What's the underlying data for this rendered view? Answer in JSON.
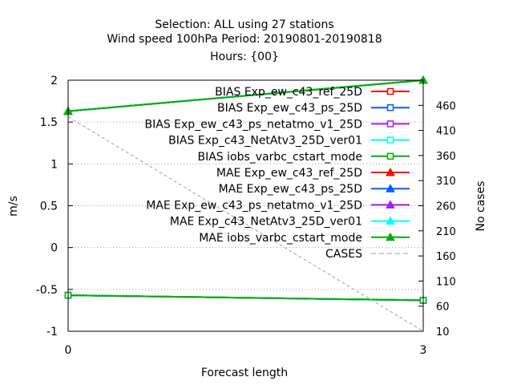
{
  "chart_data": {
    "type": "line",
    "title_lines": [
      "Selection: ALL using    27 stations",
      "Wind speed 100hPa   Period: 20190801-20190818",
      "Hours: {00}"
    ],
    "xlabel": "Forecast length",
    "ylabel": "m/s",
    "y2label": "No cases",
    "x": [
      0,
      3
    ],
    "xlim": [
      0,
      3
    ],
    "ylim": [
      -1,
      2
    ],
    "y2lim": [
      10,
      510
    ],
    "xticks": [
      "0",
      "3"
    ],
    "yticks": [
      "-1",
      "-0.5",
      "0",
      "0.5",
      "1",
      "1.5",
      "2"
    ],
    "y2ticks": [
      "10",
      "60",
      "110",
      "160",
      "210",
      "260",
      "310",
      "360",
      "410",
      "460"
    ],
    "legend_position": "top-right",
    "series": [
      {
        "name": "BIAS Exp_ew_c43_ref_25D",
        "color": "#ff0000",
        "marker": "square-open",
        "values": [
          -0.57,
          -0.63
        ]
      },
      {
        "name": "BIAS Exp_ew_c43_ps_25D",
        "color": "#0060ff",
        "marker": "square-open",
        "values": [
          -0.57,
          -0.63
        ]
      },
      {
        "name": "BIAS Exp_ew_c43_ps_netatmo_v1_25D",
        "color": "#a020f0",
        "marker": "square-open",
        "values": [
          -0.57,
          -0.63
        ]
      },
      {
        "name": "BIAS Exp_c43_NetAtv3_25D_ver01",
        "color": "#00ffff",
        "marker": "square-open",
        "values": [
          -0.57,
          -0.63
        ]
      },
      {
        "name": "BIAS iobs_varbc_cstart_mode",
        "color": "#00b000",
        "marker": "square-open",
        "values": [
          -0.57,
          -0.63
        ]
      },
      {
        "name": "MAE Exp_ew_c43_ref_25D",
        "color": "#ff0000",
        "marker": "triangle-filled",
        "values": [
          1.63,
          2.0
        ]
      },
      {
        "name": "MAE Exp_ew_c43_ps_25D",
        "color": "#0060ff",
        "marker": "triangle-filled",
        "values": [
          1.63,
          2.0
        ]
      },
      {
        "name": "MAE Exp_ew_c43_ps_netatmo_v1_25D",
        "color": "#a020f0",
        "marker": "triangle-filled",
        "values": [
          1.63,
          2.0
        ]
      },
      {
        "name": "MAE Exp_c43_NetAtv3_25D_ver01",
        "color": "#00ffff",
        "marker": "triangle-filled",
        "values": [
          1.63,
          2.0
        ]
      },
      {
        "name": "MAE iobs_varbc_cstart_mode",
        "color": "#00b000",
        "marker": "triangle-filled",
        "values": [
          1.63,
          2.0
        ]
      },
      {
        "name": "CASES",
        "color": "#a0a0a0",
        "marker": "none",
        "dashed": true,
        "axis": "y2",
        "values": [
          437,
          10
        ]
      }
    ]
  }
}
